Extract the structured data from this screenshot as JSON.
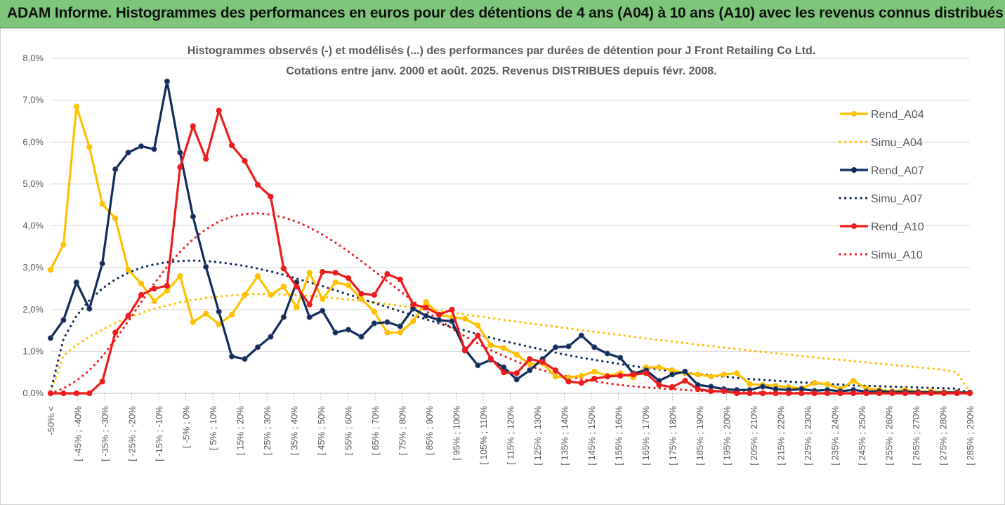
{
  "header": {
    "title": "ADAM Informe. Histogrammes des performances en euros pour des détentions de 4 ans (A04) à 10 ans (A10) avec les revenus connus distribués"
  },
  "chart_data": {
    "type": "line",
    "title": "Histogrammes observés (-) et modélisés (...) des performances par durées de détention pour J Front Retailing Co Ltd.",
    "subtitle": "Cotations entre janv. 2000 et août. 2025. Revenus DISTRIBUES depuis févr. 2008.",
    "ylim": [
      0,
      8
    ],
    "y_ticks": [
      "0,0%",
      "1,0%",
      "2,0%",
      "3,0%",
      "4,0%",
      "5,0%",
      "6,0%",
      "7,0%",
      "8,0%"
    ],
    "x_tick_labels": [
      "-50% <",
      "[ -45% ; -40%",
      "[ -35% ; -30%",
      "[ -25% ; -20%",
      "[ -15% ; -10%",
      "[ -5% ; 0%",
      "[ 5% ; 10%",
      "[ 15% ; 20%",
      "[ 25% ; 30%",
      "[ 35% ; 40%",
      "[ 45% ; 50%",
      "[ 55% ; 60%",
      "[ 65% ; 70%",
      "[ 75% ; 80%",
      "[ 85% ; 90%",
      "[ 95% ; 100%",
      "[ 105% ; 110%",
      "[ 115% ; 120%",
      "[ 125% ; 130%",
      "[ 135% ; 140%",
      "[ 145% ; 150%",
      "[ 155% ; 160%",
      "[ 165% ; 170%",
      "[ 175% ; 180%",
      "[ 185% ; 190%",
      "[ 195% ; 200%",
      "[ 205% ; 210%",
      "[ 215% ; 220%",
      "[ 225% ; 230%",
      "[ 235% ; 240%",
      "[ 245% ; 250%",
      "[ 255% ; 260%",
      "[ 265% ; 270%",
      "[ 275% ; 280%",
      "[ 285% ; 290%"
    ],
    "legend_position": "right",
    "grid": true,
    "series": [
      {
        "name": "Rend_A04",
        "style": "solid",
        "color": "#ffc000",
        "values": [
          2.95,
          3.55,
          6.85,
          5.88,
          4.52,
          4.18,
          2.95,
          2.62,
          2.2,
          2.45,
          2.8,
          1.7,
          1.9,
          1.65,
          1.88,
          2.35,
          2.8,
          2.35,
          2.55,
          2.05,
          2.88,
          2.25,
          2.65,
          2.58,
          2.25,
          1.95,
          1.45,
          1.45,
          1.72,
          2.18,
          1.88,
          1.82,
          1.78,
          1.62,
          1.15,
          1.08,
          0.92,
          0.7,
          0.72,
          0.4,
          0.38,
          0.42,
          0.52,
          0.42,
          0.48,
          0.38,
          0.62,
          0.62,
          0.55,
          0.48,
          0.45,
          0.4,
          0.45,
          0.48,
          0.22,
          0.2,
          0.18,
          0.15,
          0.12,
          0.25,
          0.22,
          0.1,
          0.3,
          0.12,
          0.08,
          0.05,
          0.08,
          0.04,
          0.05,
          0.03,
          0.03,
          0.02
        ]
      },
      {
        "name": "Simu_A04",
        "style": "dotted",
        "color": "#ffc000",
        "values": [
          0.02,
          0.9,
          1.15,
          1.35,
          1.52,
          1.68,
          1.8,
          1.92,
          2.02,
          2.1,
          2.17,
          2.23,
          2.28,
          2.31,
          2.34,
          2.36,
          2.37,
          2.37,
          2.36,
          2.35,
          2.33,
          2.3,
          2.27,
          2.24,
          2.21,
          2.17,
          2.13,
          2.09,
          2.05,
          2.01,
          1.97,
          1.93,
          1.88,
          1.84,
          1.8,
          1.75,
          1.71,
          1.67,
          1.63,
          1.59,
          1.55,
          1.51,
          1.47,
          1.43,
          1.39,
          1.35,
          1.31,
          1.27,
          1.24,
          1.2,
          1.16,
          1.13,
          1.09,
          1.06,
          1.02,
          0.99,
          0.96,
          0.92,
          0.89,
          0.86,
          0.83,
          0.8,
          0.77,
          0.74,
          0.71,
          0.68,
          0.65,
          0.62,
          0.59,
          0.56,
          0.5,
          0.02
        ]
      },
      {
        "name": "Rend_A07",
        "style": "solid",
        "color": "#0f2a5c",
        "values": [
          1.32,
          1.75,
          2.65,
          2.02,
          3.1,
          5.35,
          5.75,
          5.9,
          5.83,
          7.45,
          5.75,
          4.22,
          3.02,
          1.95,
          0.88,
          0.82,
          1.1,
          1.35,
          1.82,
          2.65,
          1.82,
          1.97,
          1.45,
          1.52,
          1.35,
          1.67,
          1.7,
          1.6,
          2.02,
          1.85,
          1.75,
          1.72,
          1.05,
          0.67,
          0.8,
          0.62,
          0.33,
          0.55,
          0.82,
          1.1,
          1.12,
          1.38,
          1.1,
          0.95,
          0.85,
          0.48,
          0.55,
          0.3,
          0.45,
          0.52,
          0.2,
          0.16,
          0.1,
          0.08,
          0.08,
          0.16,
          0.1,
          0.08,
          0.1,
          0.06,
          0.08,
          0.05,
          0.08,
          0.04,
          0.05,
          0.03,
          0.04,
          0.03,
          0.02,
          0.02,
          0.02,
          0.02
        ]
      },
      {
        "name": "Simu_A07",
        "style": "dotted",
        "color": "#0f2a5c",
        "values": [
          0.05,
          1.3,
          1.85,
          2.22,
          2.5,
          2.72,
          2.88,
          3.0,
          3.08,
          3.13,
          3.16,
          3.17,
          3.16,
          3.13,
          3.09,
          3.04,
          2.98,
          2.91,
          2.83,
          2.74,
          2.65,
          2.56,
          2.46,
          2.36,
          2.26,
          2.16,
          2.06,
          1.96,
          1.86,
          1.77,
          1.67,
          1.58,
          1.5,
          1.41,
          1.33,
          1.25,
          1.18,
          1.11,
          1.04,
          0.97,
          0.91,
          0.85,
          0.8,
          0.75,
          0.7,
          0.65,
          0.61,
          0.57,
          0.53,
          0.49,
          0.46,
          0.43,
          0.4,
          0.37,
          0.34,
          0.32,
          0.3,
          0.28,
          0.26,
          0.24,
          0.22,
          0.21,
          0.19,
          0.18,
          0.17,
          0.16,
          0.15,
          0.14,
          0.13,
          0.12,
          0.11,
          0.01
        ]
      },
      {
        "name": "Rend_A10",
        "style": "solid",
        "color": "#ee1c1c",
        "values": [
          0.0,
          0.0,
          0.0,
          0.0,
          0.28,
          1.45,
          1.85,
          2.35,
          2.5,
          2.57,
          5.4,
          6.38,
          5.6,
          6.75,
          5.92,
          5.55,
          4.98,
          4.7,
          2.98,
          2.55,
          2.12,
          2.9,
          2.88,
          2.75,
          2.38,
          2.35,
          2.85,
          2.72,
          2.12,
          2.05,
          1.88,
          2.0,
          1.02,
          1.38,
          0.83,
          0.5,
          0.48,
          0.82,
          0.75,
          0.55,
          0.28,
          0.25,
          0.35,
          0.4,
          0.42,
          0.45,
          0.48,
          0.2,
          0.15,
          0.3,
          0.1,
          0.05,
          0.05,
          0.0,
          0.0,
          0.0,
          0.0,
          0.0,
          0.0,
          0.0,
          0.0,
          0.0,
          0.0,
          0.0,
          0.0,
          0.0,
          0.0,
          0.0,
          0.0,
          0.0,
          0.0,
          0.0
        ]
      },
      {
        "name": "Simu_A10",
        "style": "dotted",
        "color": "#ee1c1c",
        "values": [
          0.0,
          0.12,
          0.3,
          0.55,
          0.88,
          1.28,
          1.72,
          2.18,
          2.62,
          3.02,
          3.38,
          3.68,
          3.92,
          4.1,
          4.22,
          4.28,
          4.3,
          4.27,
          4.2,
          4.1,
          3.96,
          3.79,
          3.6,
          3.39,
          3.16,
          2.92,
          2.68,
          2.44,
          2.2,
          1.97,
          1.75,
          1.55,
          1.36,
          1.19,
          1.03,
          0.89,
          0.76,
          0.65,
          0.55,
          0.47,
          0.4,
          0.34,
          0.29,
          0.24,
          0.2,
          0.17,
          0.14,
          0.12,
          0.1,
          0.08,
          0.06,
          0.05,
          0.04,
          0.03,
          0.02,
          0.02,
          0.01,
          0.01,
          0.01,
          0.0,
          0.0,
          0.0,
          0.0,
          0.0,
          0.0,
          0.0,
          0.0,
          0.0,
          0.0,
          0.0,
          0.0,
          0.0
        ]
      }
    ]
  }
}
